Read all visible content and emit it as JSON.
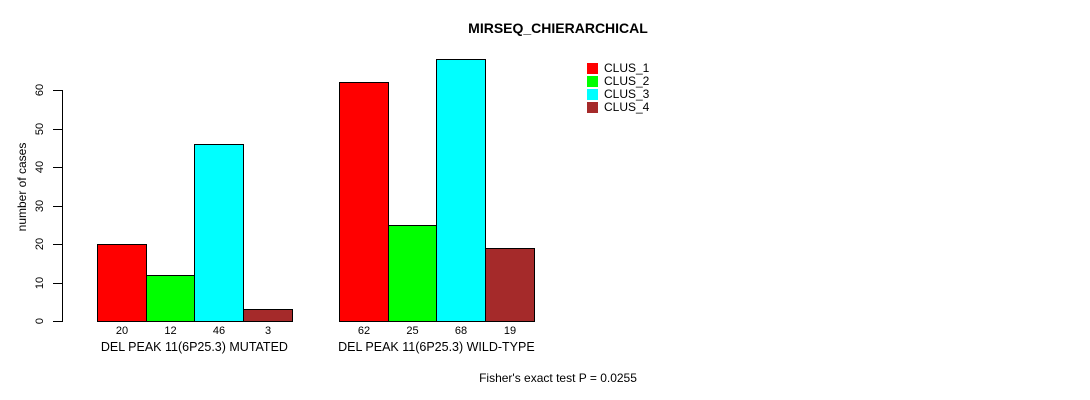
{
  "title": "MIRSEQ_CHIERARCHICAL",
  "y_axis": {
    "label": "number of cases",
    "ticks": [
      0,
      10,
      20,
      30,
      40,
      50,
      60
    ]
  },
  "footer": "Fisher's exact test P = 0.0255",
  "legend": {
    "items": [
      {
        "label": "CLUS_1",
        "color": "#ff0000"
      },
      {
        "label": "CLUS_2",
        "color": "#00ff00"
      },
      {
        "label": "CLUS_3",
        "color": "#00ffff"
      },
      {
        "label": "CLUS_4",
        "color": "#a52a2a"
      }
    ]
  },
  "chart_data": {
    "type": "bar",
    "title": "MIRSEQ_CHIERARCHICAL",
    "ylabel": "number of cases",
    "xlabel": "",
    "categories": [
      "DEL PEAK 11(6P25.3) MUTATED",
      "DEL PEAK 11(6P25.3) WILD-TYPE"
    ],
    "series": [
      {
        "name": "CLUS_1",
        "color": "#ff0000",
        "values": [
          20,
          62
        ]
      },
      {
        "name": "CLUS_2",
        "color": "#00ff00",
        "values": [
          12,
          25
        ]
      },
      {
        "name": "CLUS_3",
        "color": "#00ffff",
        "values": [
          46,
          68
        ]
      },
      {
        "name": "CLUS_4",
        "color": "#a52a2a",
        "values": [
          3,
          19
        ]
      }
    ],
    "bar_value_labels": [
      [
        20,
        12,
        46,
        3
      ],
      [
        62,
        25,
        68,
        19
      ]
    ],
    "yticks": [
      0,
      10,
      20,
      30,
      40,
      50,
      60
    ],
    "ylim": [
      0,
      70
    ],
    "grid": false,
    "legend_position": "top-right",
    "annotation": "Fisher's exact test P = 0.0255"
  }
}
